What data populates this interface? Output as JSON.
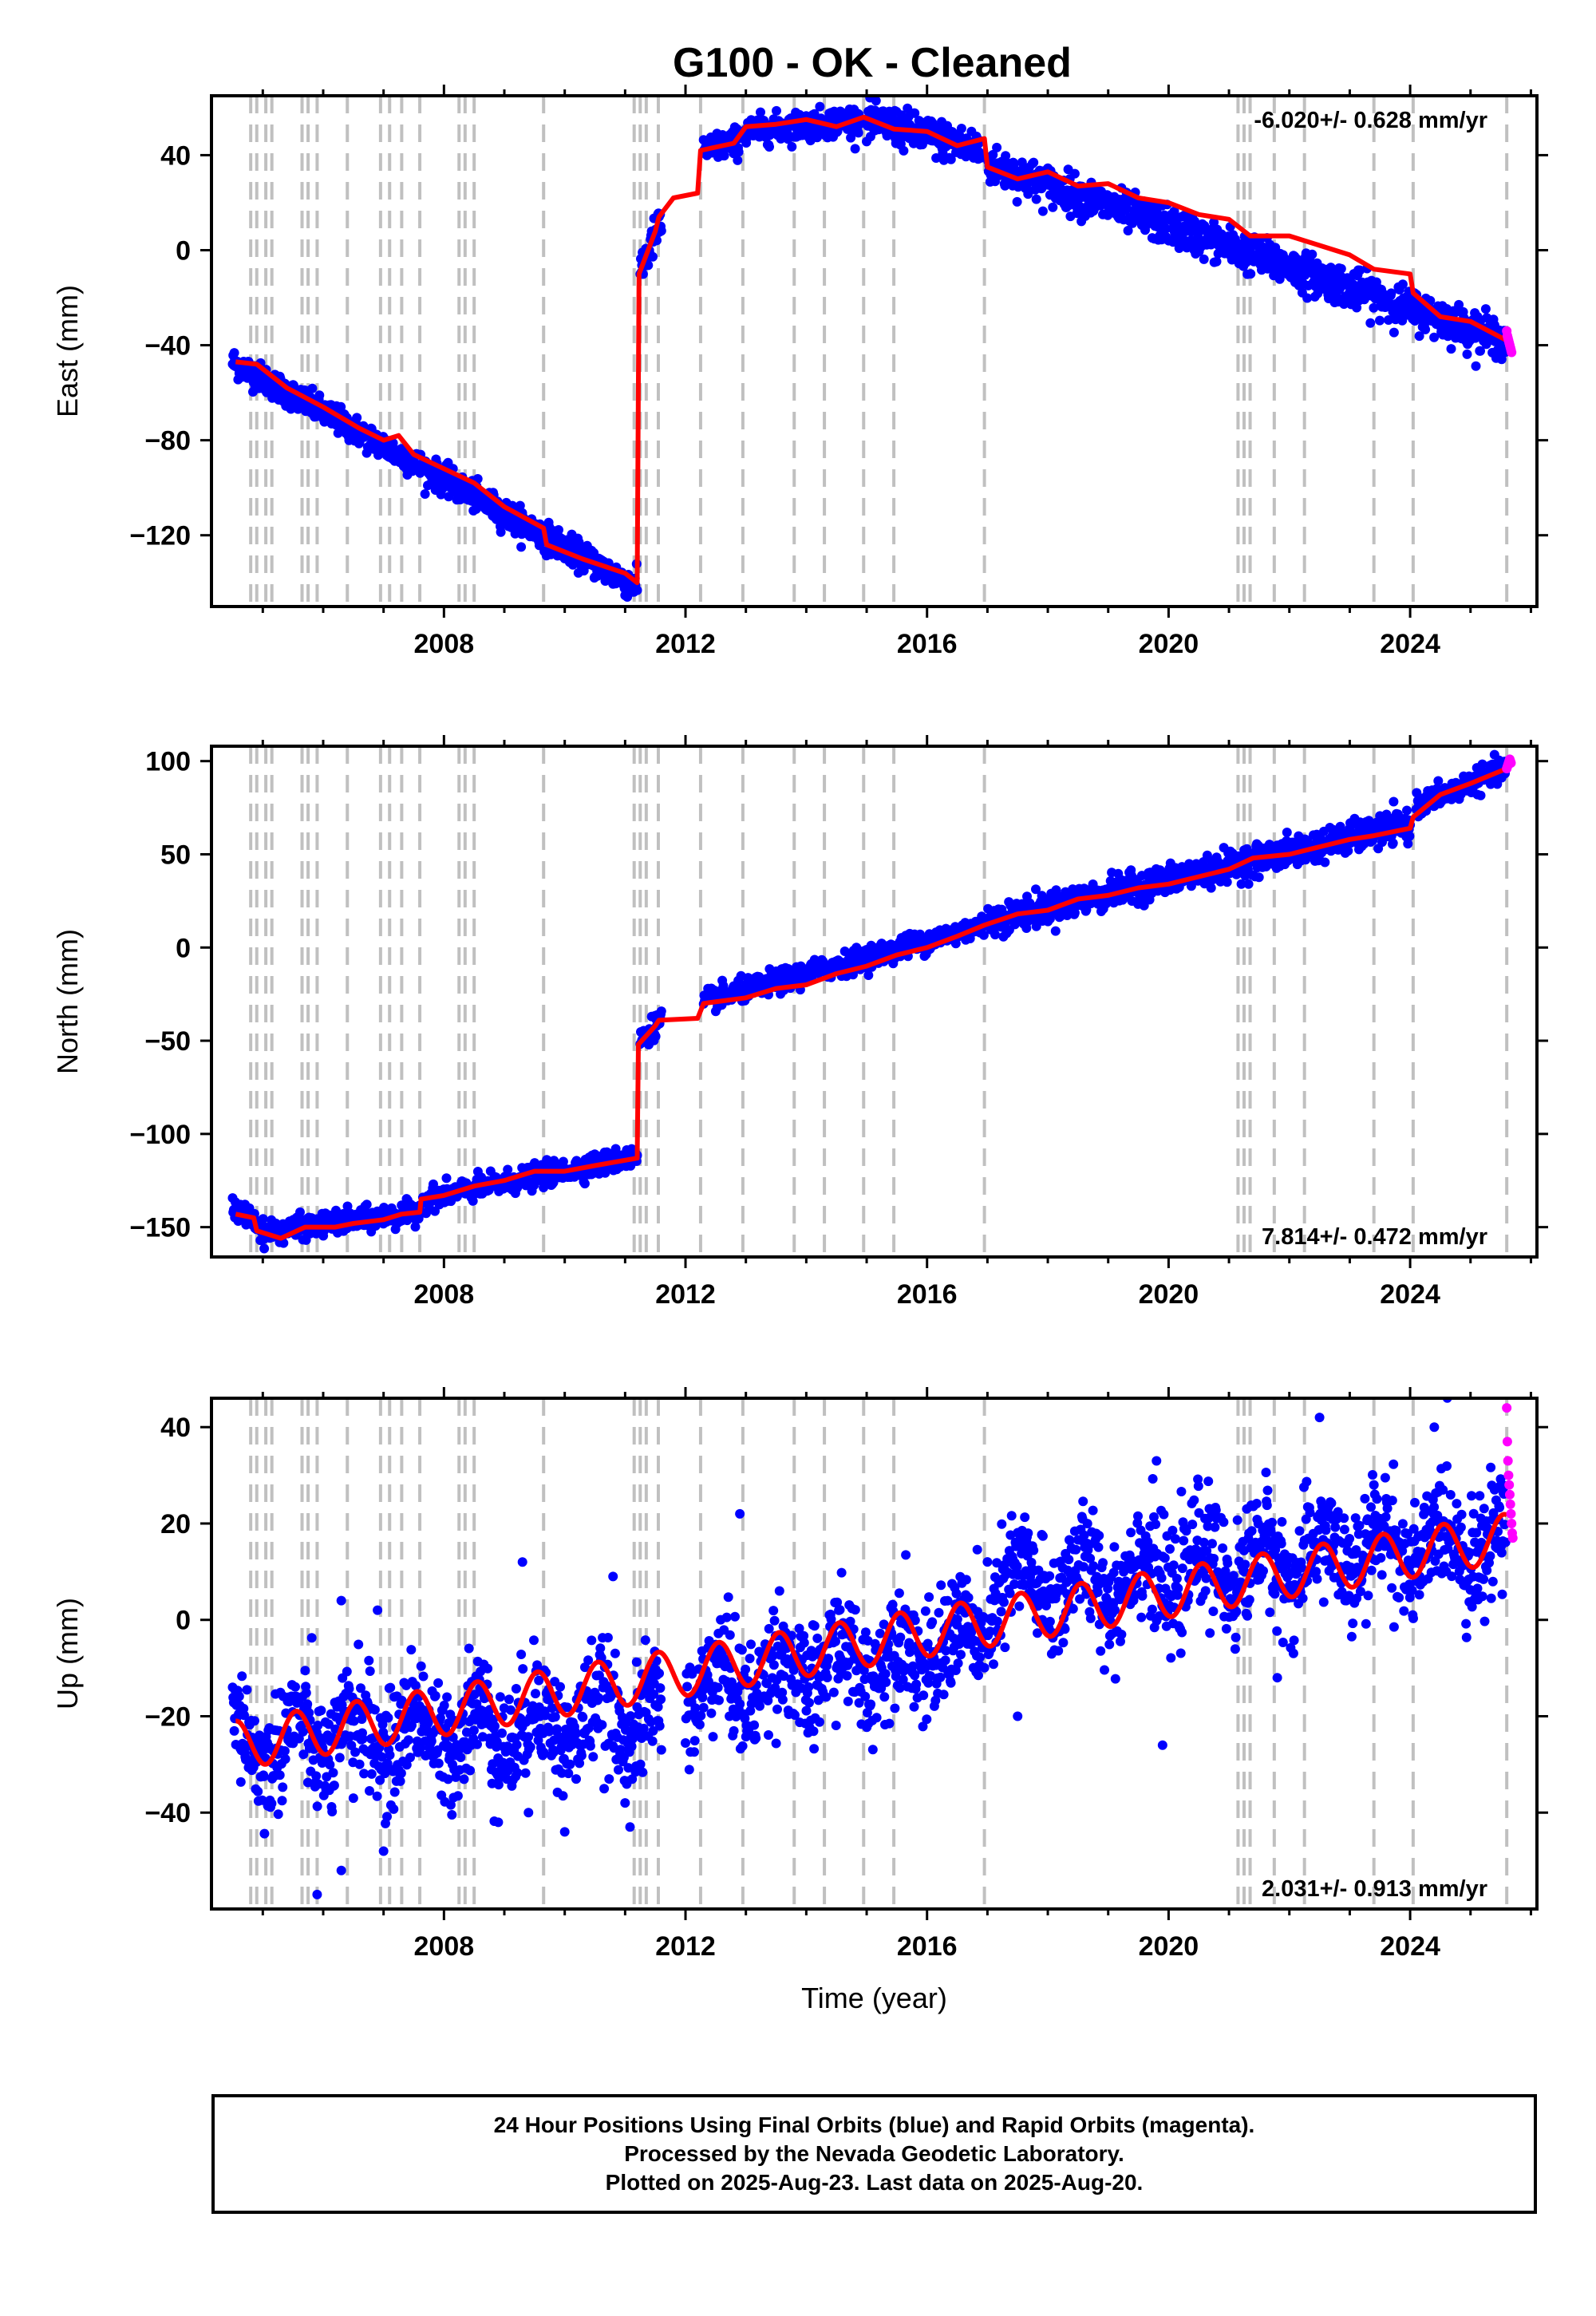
{
  "title": "G100  - OK - Cleaned",
  "colors": {
    "final_points": "#0000ff",
    "rapid_points": "#ff00ff",
    "model": "#ff0000",
    "event_lines": "#c0c0c0",
    "frame": "#000000"
  },
  "footer": {
    "line1": "24 Hour Positions Using Final Orbits (blue) and Rapid Orbits (magenta).",
    "line2": "Processed by the Nevada Geodetic Laboratory.",
    "line3": "Plotted on 2025-Aug-23. Last data on 2025-Aug-20."
  },
  "chart_data": [
    {
      "type": "scatter",
      "ylabel": "East (mm)",
      "xlim": [
        2004.15,
        2026.1
      ],
      "ylim": [
        -150,
        65
      ],
      "xticks": [
        2008,
        2012,
        2016,
        2020,
        2024
      ],
      "yticks": [
        -120,
        -80,
        -40,
        0,
        40
      ],
      "rate_label": "-6.020+/- 0.628 mm/yr",
      "rate_position": "top-right",
      "event_lines": [
        2004.8,
        2004.9,
        2005.05,
        2005.15,
        2005.65,
        2005.75,
        2005.9,
        2006.4,
        2006.95,
        2007.1,
        2007.3,
        2007.6,
        2008.25,
        2008.35,
        2008.5,
        2009.65,
        2011.15,
        2011.25,
        2011.35,
        2011.55,
        2012.25,
        2012.95,
        2013.8,
        2014.3,
        2014.95,
        2015.45,
        2016.95,
        2021.15,
        2021.25,
        2021.35,
        2021.75,
        2022.25,
        2023.4,
        2024.05,
        2025.6
      ],
      "model": [
        [
          2004.55,
          -47
        ],
        [
          2004.9,
          -48
        ],
        [
          2005.4,
          -58
        ],
        [
          2006.0,
          -66
        ],
        [
          2006.6,
          -75
        ],
        [
          2007.0,
          -80
        ],
        [
          2007.25,
          -78
        ],
        [
          2007.5,
          -86
        ],
        [
          2008.0,
          -92
        ],
        [
          2008.5,
          -98
        ],
        [
          2009.0,
          -108
        ],
        [
          2009.65,
          -117
        ],
        [
          2009.7,
          -124
        ],
        [
          2010.3,
          -130
        ],
        [
          2011.0,
          -136
        ],
        [
          2011.2,
          -140
        ],
        [
          2011.23,
          -10
        ],
        [
          2011.5,
          8
        ],
        [
          2011.56,
          14
        ],
        [
          2011.8,
          22
        ],
        [
          2012.2,
          24
        ],
        [
          2012.25,
          42
        ],
        [
          2012.8,
          45
        ],
        [
          2013.0,
          52
        ],
        [
          2013.5,
          53
        ],
        [
          2014.0,
          55
        ],
        [
          2014.5,
          52
        ],
        [
          2014.95,
          56
        ],
        [
          2015.45,
          51
        ],
        [
          2016.0,
          50
        ],
        [
          2016.5,
          44
        ],
        [
          2016.95,
          47
        ],
        [
          2017.0,
          35
        ],
        [
          2017.5,
          30
        ],
        [
          2018.0,
          33
        ],
        [
          2018.5,
          27
        ],
        [
          2019.0,
          28
        ],
        [
          2019.5,
          22
        ],
        [
          2020.0,
          20
        ],
        [
          2020.5,
          15
        ],
        [
          2021.0,
          13
        ],
        [
          2021.35,
          6
        ],
        [
          2022.0,
          6
        ],
        [
          2022.5,
          2
        ],
        [
          2023.0,
          -2
        ],
        [
          2023.4,
          -8
        ],
        [
          2024.0,
          -10
        ],
        [
          2024.05,
          -18
        ],
        [
          2024.5,
          -28
        ],
        [
          2025.0,
          -30
        ],
        [
          2025.6,
          -38
        ]
      ],
      "final_segments": [
        {
          "x": [
            2004.5,
            2011.2
          ],
          "y": [
            -47,
            -142
          ],
          "noise": 3
        },
        {
          "x": [
            2011.25,
            2011.6
          ],
          "y": [
            -8,
            12
          ],
          "noise": 4
        },
        {
          "x": [
            2012.3,
            2012.9
          ],
          "y": [
            42,
            46
          ],
          "noise": 3
        },
        {
          "x": [
            2012.95,
            2014.9
          ],
          "y": [
            50,
            55
          ],
          "noise": 3
        },
        {
          "x": [
            2015.0,
            2016.9
          ],
          "y": [
            55,
            42
          ],
          "noise": 4
        },
        {
          "x": [
            2017.0,
            2025.58
          ],
          "y": [
            36,
            -38
          ],
          "noise": 4
        }
      ],
      "rapid_points": [
        [
          2025.6,
          -34
        ],
        [
          2025.61,
          -36
        ],
        [
          2025.62,
          -37
        ],
        [
          2025.63,
          -38
        ],
        [
          2025.64,
          -39
        ],
        [
          2025.65,
          -40
        ],
        [
          2025.66,
          -41
        ],
        [
          2025.67,
          -42
        ],
        [
          2025.68,
          -43
        ]
      ]
    },
    {
      "type": "scatter",
      "ylabel": "North (mm)",
      "xlim": [
        2004.15,
        2026.1
      ],
      "ylim": [
        -166,
        108
      ],
      "xticks": [
        2008,
        2012,
        2016,
        2020,
        2024
      ],
      "yticks": [
        -150,
        -100,
        -50,
        0,
        50,
        100
      ],
      "rate_label": "7.814+/- 0.472 mm/yr",
      "rate_position": "bottom-right",
      "event_lines": [
        2004.8,
        2004.9,
        2005.05,
        2005.15,
        2005.65,
        2005.75,
        2005.9,
        2006.4,
        2006.95,
        2007.1,
        2007.3,
        2007.6,
        2008.25,
        2008.35,
        2008.5,
        2009.65,
        2011.15,
        2011.25,
        2011.35,
        2011.55,
        2012.25,
        2012.95,
        2013.8,
        2014.3,
        2014.95,
        2015.45,
        2016.95,
        2021.15,
        2021.25,
        2021.35,
        2021.75,
        2022.25,
        2023.4,
        2024.05,
        2025.6
      ],
      "model": [
        [
          2004.55,
          -143
        ],
        [
          2004.85,
          -145
        ],
        [
          2004.9,
          -152
        ],
        [
          2005.3,
          -156
        ],
        [
          2005.7,
          -150
        ],
        [
          2006.2,
          -150
        ],
        [
          2006.5,
          -148
        ],
        [
          2007.0,
          -146
        ],
        [
          2007.3,
          -143
        ],
        [
          2007.6,
          -142
        ],
        [
          2007.62,
          -135
        ],
        [
          2008.0,
          -133
        ],
        [
          2008.5,
          -128
        ],
        [
          2009.0,
          -125
        ],
        [
          2009.5,
          -120
        ],
        [
          2010.0,
          -120
        ],
        [
          2010.5,
          -117
        ],
        [
          2011.2,
          -113
        ],
        [
          2011.22,
          -52
        ],
        [
          2011.5,
          -42
        ],
        [
          2011.56,
          -39
        ],
        [
          2012.2,
          -38
        ],
        [
          2012.3,
          -30
        ],
        [
          2013.0,
          -27
        ],
        [
          2013.5,
          -22
        ],
        [
          2014.0,
          -20
        ],
        [
          2014.5,
          -14
        ],
        [
          2015.0,
          -10
        ],
        [
          2015.5,
          -4
        ],
        [
          2016.0,
          0
        ],
        [
          2016.5,
          6
        ],
        [
          2016.95,
          12
        ],
        [
          2017.5,
          18
        ],
        [
          2018.0,
          20
        ],
        [
          2018.5,
          26
        ],
        [
          2019.0,
          28
        ],
        [
          2019.5,
          32
        ],
        [
          2020.0,
          34
        ],
        [
          2020.5,
          38
        ],
        [
          2021.0,
          42
        ],
        [
          2021.4,
          48
        ],
        [
          2022.0,
          50
        ],
        [
          2022.5,
          54
        ],
        [
          2023.0,
          58
        ],
        [
          2023.4,
          60
        ],
        [
          2024.0,
          64
        ],
        [
          2024.05,
          70
        ],
        [
          2024.5,
          82
        ],
        [
          2025.0,
          88
        ],
        [
          2025.6,
          96
        ]
      ],
      "final_segments": [
        {
          "x": [
            2004.5,
            2004.9
          ],
          "y": [
            -141,
            -146
          ],
          "noise": 3
        },
        {
          "x": [
            2004.95,
            2007.6
          ],
          "y": [
            -153,
            -142
          ],
          "noise": 3
        },
        {
          "x": [
            2007.65,
            2011.2
          ],
          "y": [
            -135,
            -112
          ],
          "noise": 3
        },
        {
          "x": [
            2011.25,
            2011.6
          ],
          "y": [
            -50,
            -38
          ],
          "noise": 3
        },
        {
          "x": [
            2012.3,
            2016.95
          ],
          "y": [
            -29,
            12
          ],
          "noise": 3
        },
        {
          "x": [
            2017.0,
            2024.0
          ],
          "y": [
            14,
            66
          ],
          "noise": 4
        },
        {
          "x": [
            2024.1,
            2025.58
          ],
          "y": [
            76,
            96
          ],
          "noise": 3
        }
      ],
      "rapid_points": [
        [
          2025.6,
          96
        ],
        [
          2025.61,
          97
        ],
        [
          2025.62,
          98
        ],
        [
          2025.63,
          99
        ],
        [
          2025.64,
          100
        ],
        [
          2025.65,
          101
        ],
        [
          2025.66,
          100
        ],
        [
          2025.67,
          99
        ]
      ]
    },
    {
      "type": "scatter",
      "ylabel": "Up (mm)",
      "xlabel": "Time (year)",
      "xlim": [
        2004.15,
        2026.1
      ],
      "ylim": [
        -60,
        46
      ],
      "xticks": [
        2008,
        2012,
        2016,
        2020,
        2024
      ],
      "yticks": [
        -40,
        -20,
        0,
        20,
        40
      ],
      "rate_label": "2.031+/- 0.913 mm/yr",
      "rate_position": "bottom-right",
      "event_lines": [
        2004.8,
        2004.9,
        2005.05,
        2005.15,
        2005.65,
        2005.75,
        2005.9,
        2006.4,
        2006.95,
        2007.1,
        2007.3,
        2007.6,
        2008.25,
        2008.35,
        2008.5,
        2009.65,
        2011.15,
        2011.25,
        2011.35,
        2011.55,
        2012.25,
        2012.95,
        2013.8,
        2014.3,
        2014.95,
        2015.45,
        2016.95,
        2021.15,
        2021.25,
        2021.35,
        2021.75,
        2022.25,
        2023.4,
        2024.05,
        2025.6
      ],
      "model": {
        "trend_start": [
          2004.55,
          -26
        ],
        "trend_end": [
          2025.6,
          17
        ],
        "seasonal_amplitude": 5,
        "peak_phase": 0.55
      },
      "final_segments": [
        {
          "x": [
            2004.5,
            2011.6
          ],
          "y": [
            -26,
            -20
          ],
          "noise": 6,
          "seasonal": 5
        },
        {
          "x": [
            2012.0,
            2016.95
          ],
          "y": [
            -15,
            -4
          ],
          "noise": 6,
          "seasonal": 5
        },
        {
          "x": [
            2017.0,
            2025.58
          ],
          "y": [
            6,
            17
          ],
          "noise": 6,
          "seasonal": 5
        }
      ],
      "outliers": [
        [
          2005.9,
          -57
        ],
        [
          2006.3,
          -52
        ],
        [
          2007.0,
          -48
        ],
        [
          2006.5,
          -37
        ],
        [
          2009.4,
          -40
        ],
        [
          2010.0,
          -44
        ],
        [
          2008.9,
          -42
        ],
        [
          2012.9,
          22
        ],
        [
          2010.8,
          9
        ],
        [
          2009.3,
          12
        ],
        [
          2017.5,
          -20
        ],
        [
          2019.9,
          -26
        ],
        [
          2021.8,
          -12
        ],
        [
          2022.5,
          42
        ],
        [
          2023.4,
          28
        ],
        [
          2024.4,
          40
        ],
        [
          2019.8,
          33
        ],
        [
          2006.9,
          2
        ],
        [
          2006.3,
          4
        ]
      ],
      "rapid_points": [
        [
          2025.6,
          44
        ],
        [
          2025.61,
          37
        ],
        [
          2025.62,
          33
        ],
        [
          2025.63,
          30
        ],
        [
          2025.64,
          28
        ],
        [
          2025.65,
          26
        ],
        [
          2025.66,
          24
        ],
        [
          2025.67,
          22
        ],
        [
          2025.68,
          20
        ],
        [
          2025.69,
          18
        ],
        [
          2025.7,
          17
        ]
      ]
    }
  ]
}
